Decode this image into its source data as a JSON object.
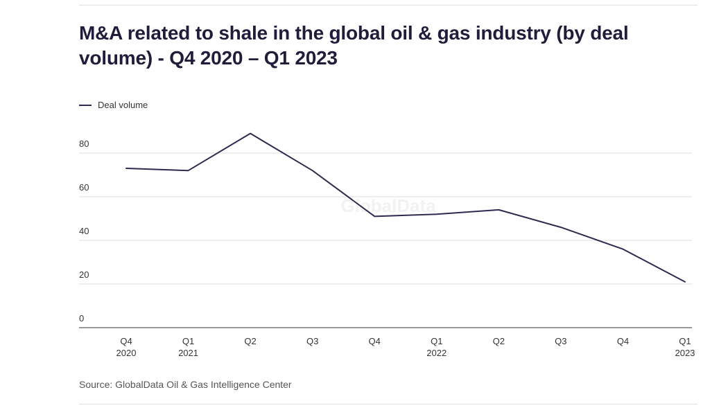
{
  "colors": {
    "line": "#2e2a4f",
    "grid": "#dddddd",
    "axis": "#333333"
  },
  "header": {
    "title": "M&A related to shale in the global oil & gas industry (by deal volume) - Q4 2020 – Q1 2023"
  },
  "legend": {
    "label": "Deal volume"
  },
  "watermark": "GlobalData",
  "footer": {
    "source": "Source: GlobalData Oil & Gas Intelligence Center"
  },
  "chart_data": {
    "type": "line",
    "title": "M&A related to shale in the global oil & gas industry (by deal volume) - Q4 2020 – Q1 2023",
    "xlabel": "",
    "ylabel": "",
    "ylim": [
      0,
      80
    ],
    "yticks": [
      0,
      20,
      40,
      60,
      80
    ],
    "grid": true,
    "legend_position": "top-left",
    "categories": [
      [
        "Q4",
        "2020"
      ],
      [
        "Q1",
        "2021"
      ],
      [
        "Q2",
        ""
      ],
      [
        "Q3",
        ""
      ],
      [
        "Q4",
        ""
      ],
      [
        "Q1",
        "2022"
      ],
      [
        "Q2",
        ""
      ],
      [
        "Q3",
        ""
      ],
      [
        "Q4",
        ""
      ],
      [
        "Q1",
        "2023"
      ]
    ],
    "series": [
      {
        "name": "Deal volume",
        "values": [
          73,
          72,
          89,
          72,
          51,
          52,
          54,
          46,
          36,
          21
        ]
      }
    ]
  }
}
